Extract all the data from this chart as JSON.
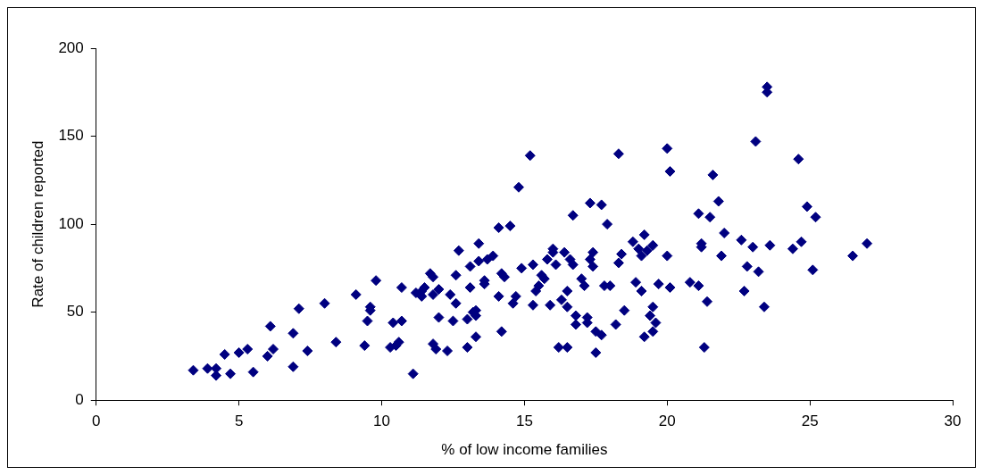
{
  "chart_data": {
    "type": "scatter",
    "xlabel": "% of low income families",
    "ylabel": "Rate of children reported",
    "xlim": [
      0,
      30
    ],
    "xticks": [
      0,
      5,
      10,
      15,
      20,
      25,
      30
    ],
    "ylim": [
      0,
      200
    ],
    "yticks": [
      0,
      50,
      100,
      150,
      200
    ],
    "grid": false,
    "legend": false,
    "marker": "diamond",
    "series": [
      {
        "color": "#000080",
        "x": [
          3.4,
          3.9,
          4.2,
          4.2,
          4.5,
          4.7,
          5.0,
          5.3,
          5.5,
          6.0,
          6.1,
          6.2,
          6.9,
          6.9,
          7.1,
          7.4,
          8.0,
          8.4,
          9.1,
          9.4,
          9.5,
          9.6,
          9.6,
          9.8,
          10.3,
          10.4,
          10.5,
          10.6,
          10.7,
          10.7,
          11.1,
          11.2,
          11.4,
          11.4,
          11.5,
          11.7,
          11.8,
          11.8,
          11.8,
          11.9,
          12.0,
          12.0,
          12.3,
          12.4,
          12.5,
          12.6,
          12.6,
          12.7,
          13.0,
          13.0,
          13.1,
          13.1,
          13.2,
          13.3,
          13.3,
          13.3,
          13.4,
          13.4,
          13.6,
          13.6,
          13.7,
          13.9,
          14.1,
          14.1,
          14.2,
          14.2,
          14.3,
          14.5,
          14.6,
          14.7,
          14.8,
          14.9,
          15.2,
          15.3,
          15.3,
          15.4,
          15.5,
          15.6,
          15.7,
          15.8,
          15.9,
          16.0,
          16.0,
          16.1,
          16.2,
          16.3,
          16.4,
          16.5,
          16.5,
          16.5,
          16.6,
          16.7,
          16.7,
          16.8,
          16.8,
          17.0,
          17.1,
          17.2,
          17.2,
          17.3,
          17.3,
          17.4,
          17.4,
          17.5,
          17.5,
          17.7,
          17.7,
          17.8,
          17.9,
          18.0,
          18.2,
          18.3,
          18.3,
          18.4,
          18.5,
          18.8,
          18.9,
          19.0,
          19.1,
          19.1,
          19.2,
          19.2,
          19.3,
          19.4,
          19.5,
          19.5,
          19.5,
          19.6,
          19.7,
          20.0,
          20.0,
          20.1,
          20.1,
          20.8,
          21.1,
          21.1,
          21.2,
          21.2,
          21.3,
          21.4,
          21.5,
          21.6,
          21.8,
          21.9,
          22.0,
          22.6,
          22.7,
          22.8,
          23.0,
          23.1,
          23.2,
          23.4,
          23.5,
          23.5,
          23.6,
          24.4,
          24.6,
          24.7,
          24.9,
          25.1,
          25.2,
          26.5,
          27.0
        ],
        "values": [
          17,
          18,
          14,
          18,
          26,
          15,
          27,
          29,
          16,
          25,
          42,
          29,
          19,
          38,
          52,
          28,
          55,
          33,
          60,
          31,
          45,
          53,
          51,
          68,
          30,
          44,
          31,
          33,
          45,
          64,
          15,
          61,
          62,
          59,
          64,
          72,
          70,
          60,
          32,
          29,
          47,
          63,
          28,
          60,
          45,
          55,
          71,
          85,
          30,
          46,
          64,
          76,
          50,
          36,
          48,
          51,
          89,
          79,
          66,
          68,
          80,
          82,
          98,
          59,
          39,
          72,
          70,
          99,
          55,
          59,
          121,
          75,
          139,
          54,
          77,
          62,
          65,
          71,
          69,
          80,
          54,
          86,
          84,
          77,
          30,
          57,
          84,
          30,
          53,
          62,
          80,
          77,
          105,
          48,
          43,
          69,
          65,
          47,
          44,
          80,
          112,
          84,
          76,
          39,
          27,
          111,
          37,
          65,
          100,
          65,
          43,
          140,
          78,
          83,
          51,
          90,
          67,
          86,
          82,
          62,
          94,
          36,
          85,
          48,
          53,
          88,
          39,
          44,
          66,
          82,
          143,
          130,
          64,
          67,
          106,
          65,
          89,
          87,
          30,
          56,
          104,
          128,
          113,
          82,
          95,
          91,
          62,
          76,
          87,
          147,
          73,
          53,
          178,
          175,
          88,
          86,
          137,
          90,
          110,
          74,
          104,
          82,
          89
        ]
      }
    ]
  }
}
